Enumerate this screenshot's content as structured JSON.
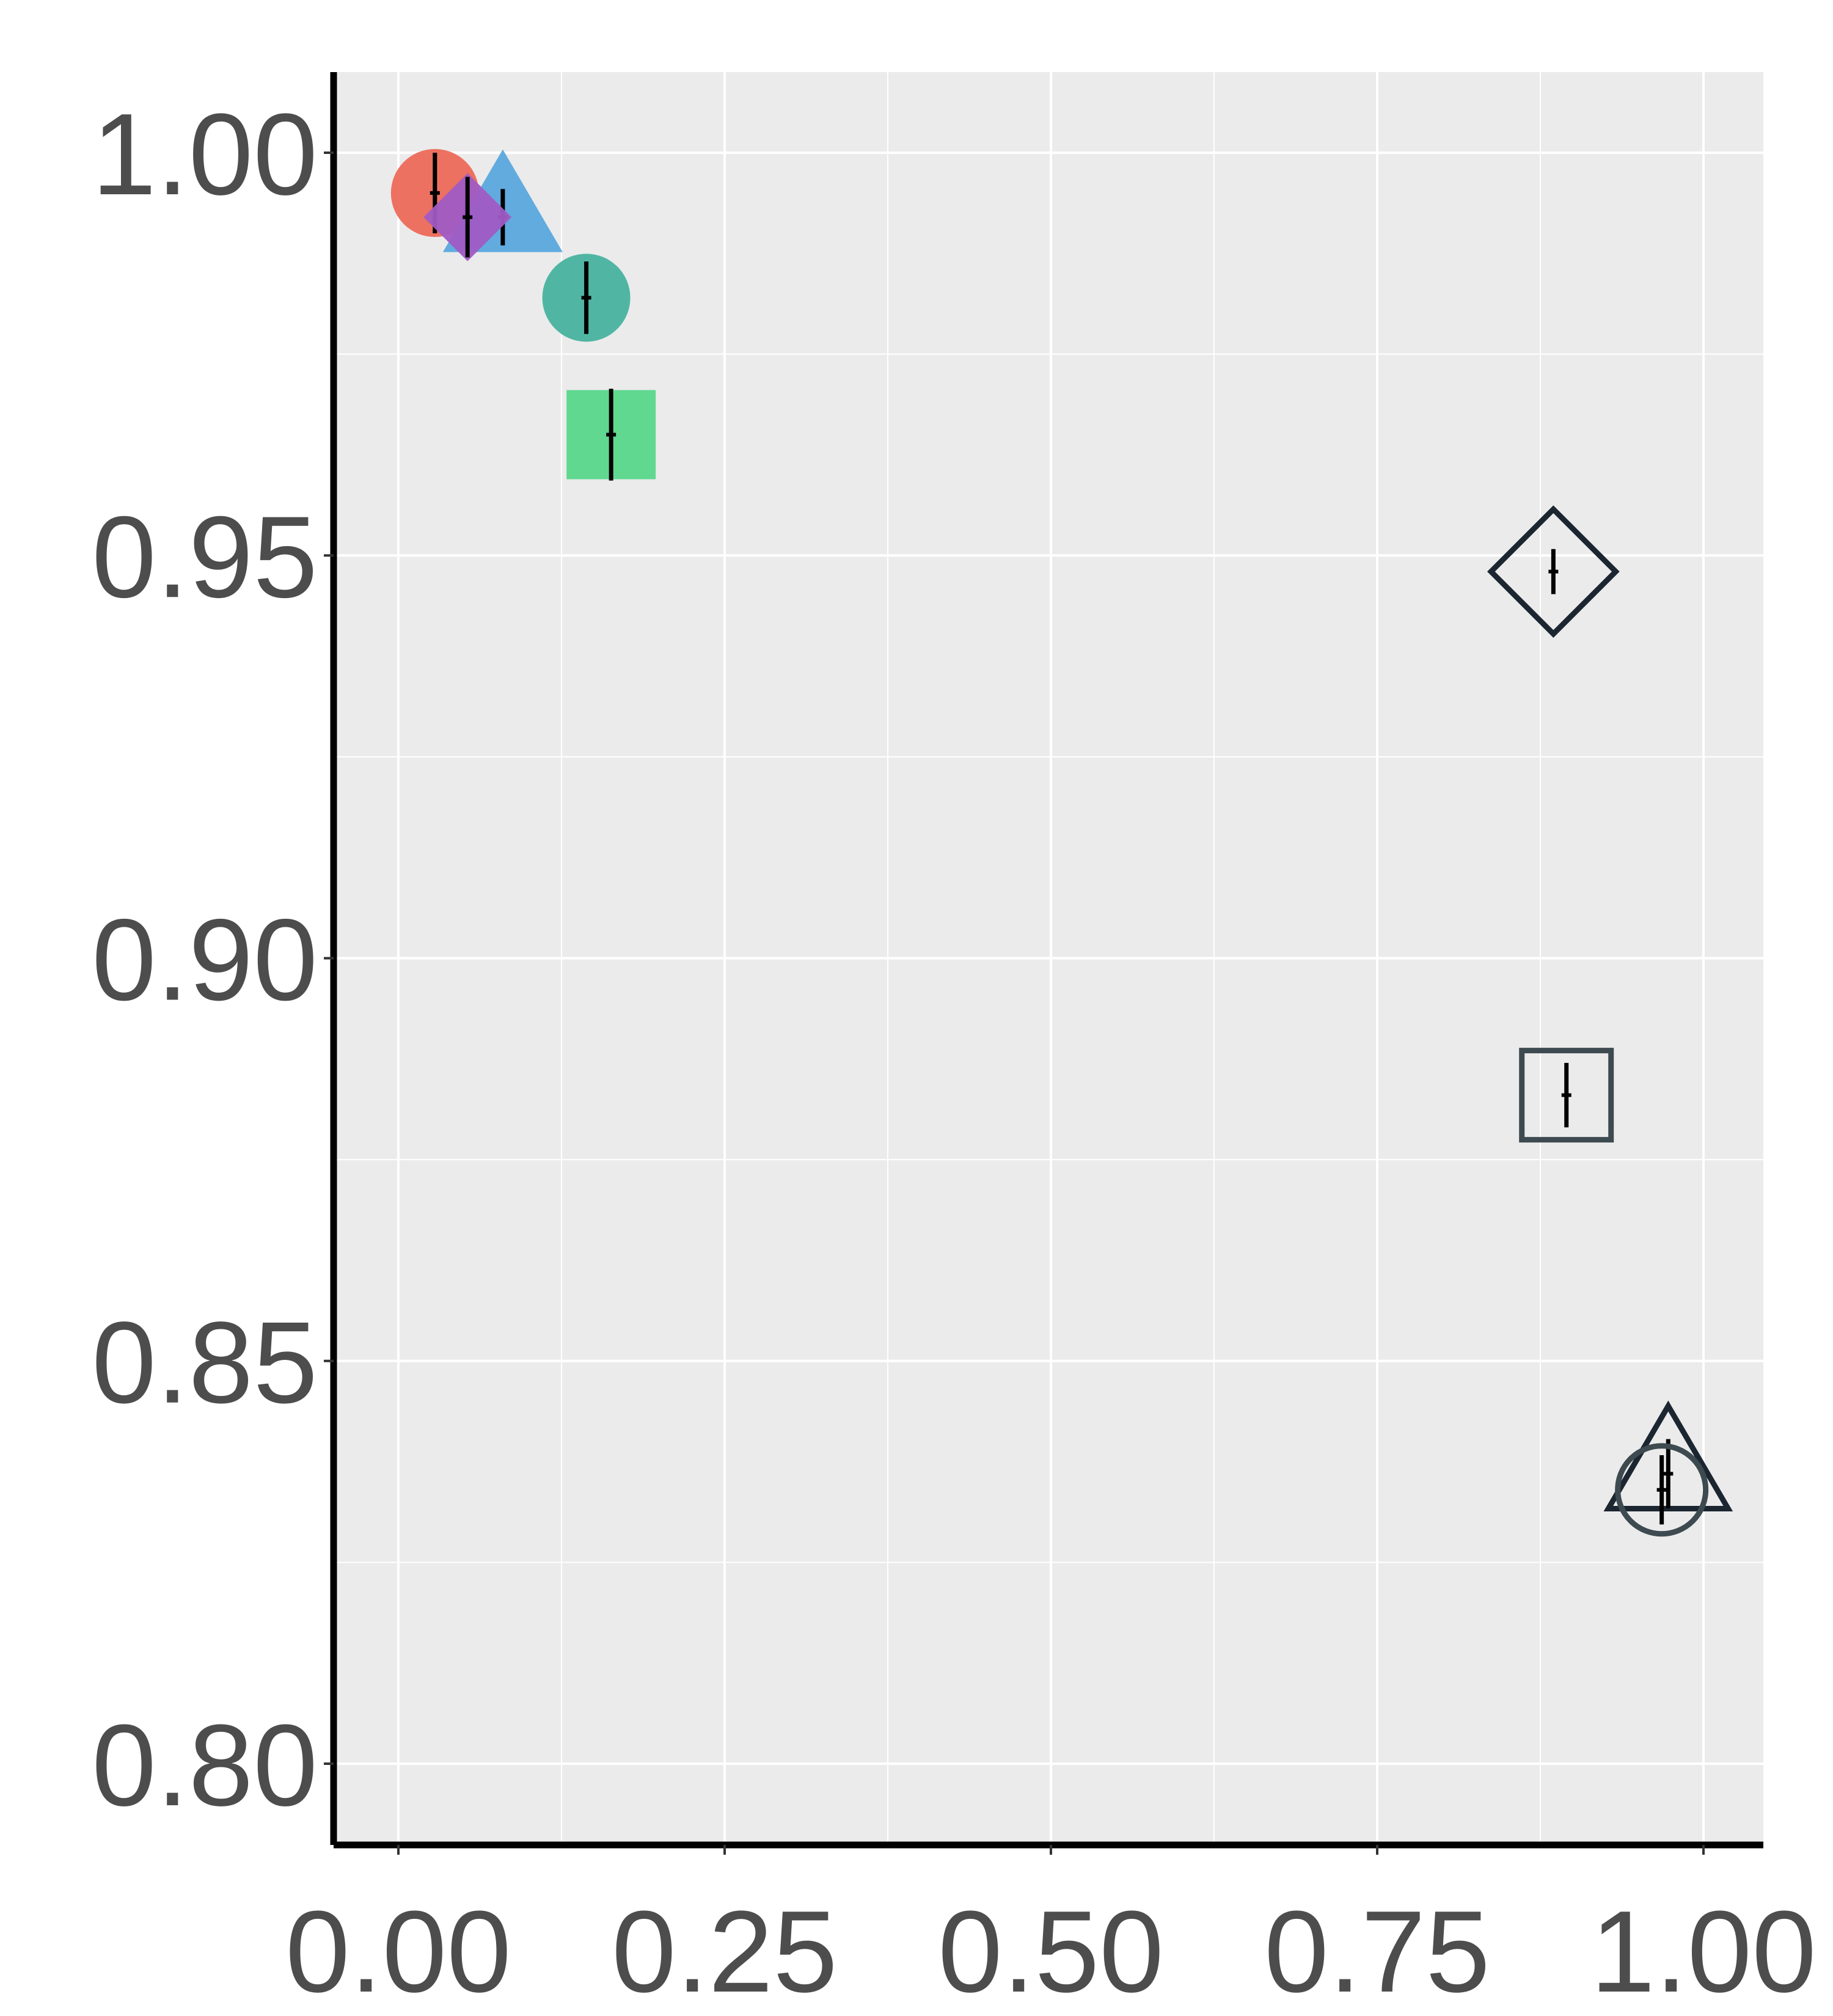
{
  "chart_data": {
    "type": "scatter",
    "title": "",
    "xlabel": "",
    "ylabel": "",
    "xlim": [
      -0.1,
      1.05
    ],
    "ylim": [
      0.79,
      1.01
    ],
    "x_ticks": [
      "0.00",
      "0.25",
      "0.50",
      "0.75",
      "1.00"
    ],
    "y_ticks": [
      "0.80",
      "0.85",
      "0.90",
      "0.95",
      "1.00"
    ],
    "grid": true,
    "legend": "none",
    "points": [
      {
        "x": 0.028,
        "y": 0.995,
        "y_err": 0.005,
        "shape": "circle",
        "filled": true,
        "color": "#ed6a5a"
      },
      {
        "x": 0.08,
        "y": 0.992,
        "y_err": 0.0035,
        "shape": "triangle",
        "filled": true,
        "color": "#5aa8de"
      },
      {
        "x": 0.053,
        "y": 0.992,
        "y_err": 0.005,
        "shape": "diamond",
        "filled": true,
        "color": "#a05bc4"
      },
      {
        "x": 0.144,
        "y": 0.982,
        "y_err": 0.0045,
        "shape": "circle",
        "filled": true,
        "color": "#48b39f"
      },
      {
        "x": 0.163,
        "y": 0.965,
        "y_err": 0.0057,
        "shape": "square",
        "filled": true,
        "color": "#5ad78b"
      },
      {
        "x": 0.885,
        "y": 0.948,
        "y_err": 0.0028,
        "shape": "diamond",
        "filled": false,
        "color": "#1c2631"
      },
      {
        "x": 0.895,
        "y": 0.883,
        "y_err": 0.004,
        "shape": "square",
        "filled": false,
        "color": "#3d4a50"
      },
      {
        "x": 0.973,
        "y": 0.836,
        "y_err": 0.0043,
        "shape": "triangle",
        "filled": false,
        "color": "#1c2631"
      },
      {
        "x": 0.968,
        "y": 0.834,
        "y_err": 0.0043,
        "shape": "circle",
        "filled": false,
        "color": "#3d4a50"
      }
    ],
    "colors": {
      "panel": "#ebebeb",
      "grid": "#ffffff",
      "axis": "#000000",
      "tick_text": "#4d4d4d",
      "error_bar": "#000000"
    }
  }
}
